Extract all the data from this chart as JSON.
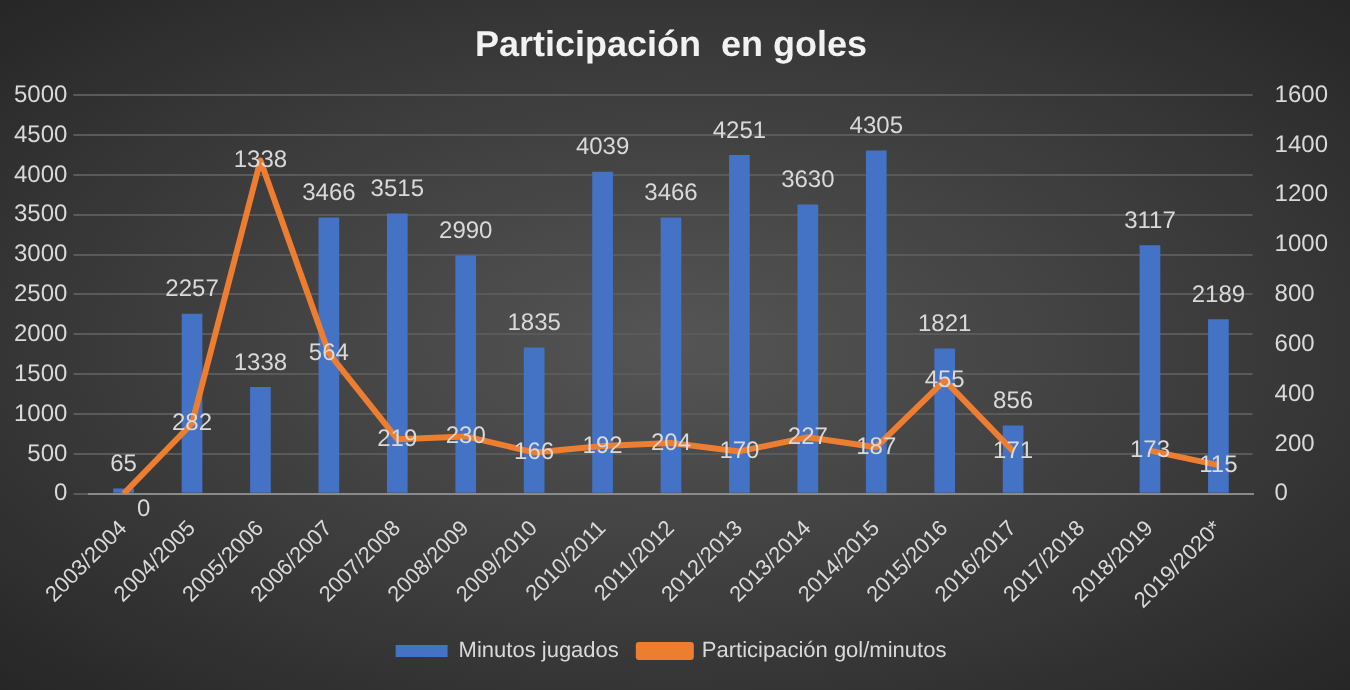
{
  "chart_data": {
    "type": "bar",
    "title": "Participación  en goles",
    "categories": [
      "2003/2004",
      "2004/2005",
      "2005/2006",
      "2006/2007",
      "2007/2008",
      "2008/2009",
      "2009/2010",
      "2010/2011",
      "2011/2012",
      "2012/2013",
      "2013/2014",
      "2014/2015",
      "2015/2016",
      "2016/2017",
      "2017/2018",
      "2018/2019",
      "2019/2020*"
    ],
    "series": [
      {
        "name": "Minutos jugados",
        "color": "#4472c4",
        "values": [
          65,
          2257,
          1338,
          3466,
          3515,
          2990,
          1835,
          4039,
          3466,
          4251,
          3630,
          4305,
          1821,
          856,
          null,
          3117,
          2189
        ]
      },
      {
        "name": "Participación gol/minutos",
        "type": "line",
        "axis": "y2",
        "color": "#ed7d31",
        "values": [
          0,
          282,
          1338,
          564,
          219,
          230,
          166,
          192,
          204,
          170,
          227,
          187,
          455,
          171,
          null,
          173,
          115
        ]
      }
    ],
    "ylim": [
      0,
      5000
    ],
    "yticks": [
      0,
      500,
      1000,
      1500,
      2000,
      2500,
      3000,
      3500,
      4000,
      4500,
      5000
    ],
    "y2lim": [
      0,
      1600
    ],
    "y2ticks": [
      0,
      200,
      400,
      600,
      800,
      1000,
      1200,
      1400,
      1600
    ],
    "grid": "y",
    "legend": "bottom",
    "data_labels": true,
    "marker": "none"
  }
}
